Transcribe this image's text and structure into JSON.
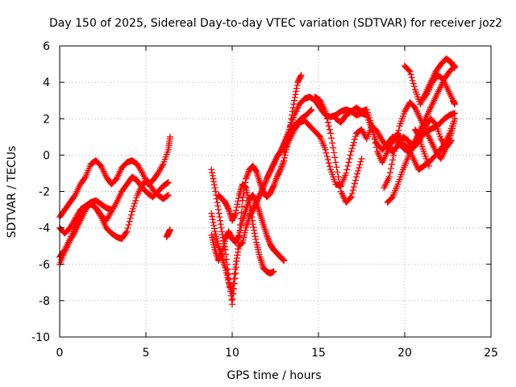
{
  "chart_data": {
    "type": "scatter",
    "title": "Day 150 of 2025, Sidereal Day-to-day VTEC variation (SDTVAR) for receiver joz2",
    "xlabel": "GPS time / hours",
    "ylabel": "SDTVAR / TECUs",
    "xlim": [
      0,
      25
    ],
    "ylim": [
      -10,
      6
    ],
    "xticks": [
      0,
      5,
      10,
      15,
      20,
      25
    ],
    "yticks": [
      -10,
      -8,
      -6,
      -4,
      -2,
      0,
      2,
      4,
      6
    ],
    "grid": true,
    "marker": "+",
    "color": "#ff0000",
    "series": [
      {
        "x": [
          0.0,
          0.3,
          0.6,
          0.9,
          1.2,
          1.5,
          1.8,
          2.1,
          2.4,
          2.7,
          3.0,
          3.3,
          3.6,
          3.9,
          4.2,
          4.5,
          4.8,
          5.1,
          5.4,
          5.7,
          6.0,
          6.3,
          6.4
        ],
        "y": [
          -3.4,
          -3.0,
          -2.6,
          -2.2,
          -1.6,
          -1.2,
          -0.5,
          -0.3,
          -0.6,
          -1.2,
          -1.6,
          -1.3,
          -0.7,
          -0.4,
          -0.3,
          -0.5,
          -1.0,
          -1.6,
          -1.4,
          -1.0,
          -0.5,
          0.3,
          1.0
        ]
      },
      {
        "x": [
          0.0,
          0.3,
          0.6,
          0.9,
          1.2,
          1.5,
          1.8,
          2.1,
          2.4,
          2.7,
          3.0,
          3.3,
          3.6,
          3.9,
          4.2,
          4.5,
          4.8,
          5.1,
          5.4,
          5.7,
          6.0,
          6.3
        ],
        "y": [
          -5.6,
          -5.2,
          -4.6,
          -3.8,
          -3.2,
          -2.9,
          -2.7,
          -2.9,
          -3.3,
          -3.6,
          -3.1,
          -2.6,
          -2.0,
          -1.6,
          -1.2,
          -1.4,
          -1.8,
          -2.1,
          -2.3,
          -2.0,
          -1.7,
          -1.5
        ]
      },
      {
        "x": [
          0.0,
          0.3,
          0.6,
          0.9,
          1.2,
          1.5,
          1.8,
          2.1,
          2.4,
          2.7,
          3.0,
          3.3,
          3.6,
          3.9,
          4.2,
          4.5,
          4.8,
          5.1,
          5.4,
          5.7,
          6.0,
          6.3
        ],
        "y": [
          -6.0,
          -5.3,
          -4.7,
          -4.2,
          -3.6,
          -3.0,
          -2.6,
          -2.9,
          -3.4,
          -4.0,
          -4.3,
          -4.5,
          -4.6,
          -4.2,
          -3.1,
          -2.2,
          -1.6,
          -1.4,
          -1.9,
          -2.2,
          -2.4,
          -2.2
        ]
      },
      {
        "x": [
          0.0,
          0.3,
          0.6,
          0.9,
          1.2,
          1.5,
          1.8,
          2.1,
          2.4,
          2.7,
          3.0
        ],
        "y": [
          -4.0,
          -4.3,
          -4.0,
          -3.5,
          -3.0,
          -2.8,
          -2.6,
          -2.5,
          -2.7,
          -2.9,
          -3.0
        ]
      },
      {
        "x": [
          6.2,
          6.3,
          6.4
        ],
        "y": [
          -4.5,
          -4.3,
          -4.1
        ]
      },
      {
        "x": [
          8.8,
          9.0,
          9.2,
          9.4,
          9.6,
          9.8,
          10.0,
          10.2,
          10.4,
          10.6,
          10.8,
          11.0,
          11.2,
          11.4,
          11.6,
          11.8,
          12.0,
          12.2,
          12.4,
          12.6,
          12.8,
          13.0,
          13.2,
          13.4,
          13.6,
          13.8,
          14.0
        ],
        "y": [
          -0.8,
          -1.8,
          -3.0,
          -4.2,
          -5.2,
          -6.8,
          -8.2,
          -6.5,
          -4.5,
          -2.5,
          -1.3,
          -0.8,
          -0.6,
          -0.9,
          -1.5,
          -2.0,
          -2.3,
          -2.1,
          -1.7,
          -1.2,
          -0.8,
          -0.3,
          0.6,
          1.8,
          3.0,
          4.0,
          4.4
        ]
      },
      {
        "x": [
          8.8,
          9.0,
          9.2,
          9.4,
          9.6,
          9.8,
          10.0,
          10.2,
          10.4,
          10.6,
          10.8,
          11.0,
          11.2,
          11.4,
          11.6,
          11.8,
          12.0,
          12.2,
          12.4,
          12.6,
          12.8,
          13.0,
          13.2,
          13.4,
          13.6,
          13.8,
          14.0,
          14.3,
          14.6
        ],
        "y": [
          -3.2,
          -4.2,
          -5.0,
          -5.6,
          -6.2,
          -7.0,
          -7.6,
          -6.0,
          -5.0,
          -4.8,
          -4.0,
          -3.4,
          -3.0,
          -2.6,
          -2.2,
          -1.8,
          -1.3,
          -0.9,
          -0.5,
          -0.1,
          0.2,
          0.6,
          1.0,
          1.3,
          1.6,
          1.8,
          2.0,
          2.2,
          2.5
        ]
      },
      {
        "x": [
          8.8,
          9.0,
          9.2,
          9.4,
          9.6,
          9.8,
          10.0,
          10.2,
          10.4,
          10.6,
          10.8,
          11.0,
          11.2,
          11.4,
          11.6,
          11.8,
          12.0,
          12.2,
          12.4,
          12.6,
          12.8,
          13.0
        ],
        "y": [
          -4.4,
          -5.2,
          -5.8,
          -5.4,
          -4.6,
          -4.2,
          -4.6,
          -4.8,
          -4.4,
          -3.6,
          -3.0,
          -2.4,
          -2.2,
          -2.6,
          -3.2,
          -3.8,
          -4.4,
          -4.9,
          -5.2,
          -5.4,
          -5.6,
          -5.8
        ]
      },
      {
        "x": [
          9.2,
          9.4,
          9.6,
          9.8,
          10.0,
          10.2,
          10.4,
          10.6,
          10.8,
          11.0,
          11.2,
          11.4,
          11.6,
          11.8,
          12.0,
          12.2,
          12.4
        ],
        "y": [
          -2.2,
          -2.4,
          -2.6,
          -3.0,
          -3.6,
          -3.2,
          -2.2,
          -1.6,
          -1.8,
          -2.6,
          -3.8,
          -4.8,
          -5.6,
          -6.2,
          -6.4,
          -6.5,
          -6.4
        ]
      },
      {
        "x": [
          13.0,
          13.3,
          13.6,
          13.9,
          14.2,
          14.5,
          14.8,
          15.1,
          15.4,
          15.7,
          16.0,
          16.3,
          16.6,
          16.9,
          17.2,
          17.5,
          17.8,
          18.1,
          18.4,
          18.7,
          19.0,
          19.3,
          19.6,
          19.9,
          20.2,
          20.5,
          20.8,
          21.1,
          21.4,
          21.7,
          22.0,
          22.3,
          22.6,
          22.9
        ],
        "y": [
          0.6,
          1.4,
          2.2,
          2.8,
          3.1,
          3.2,
          3.0,
          2.6,
          2.2,
          2.1,
          2.2,
          2.4,
          2.5,
          2.4,
          2.2,
          2.3,
          2.2,
          1.4,
          0.6,
          0.3,
          0.6,
          1.0,
          0.8,
          0.4,
          0.2,
          0.6,
          1.2,
          1.8,
          2.4,
          3.0,
          3.6,
          4.2,
          4.6,
          4.9
        ]
      },
      {
        "x": [
          13.0,
          13.3,
          13.6,
          13.9,
          14.2,
          14.5,
          14.8,
          15.1,
          15.4,
          15.7,
          16.0,
          16.3,
          16.6,
          16.9,
          17.2,
          17.5,
          17.8,
          18.1,
          18.4,
          18.7,
          19.0,
          19.3,
          19.6,
          19.9,
          20.2,
          20.5,
          20.8,
          21.1,
          21.4,
          21.7,
          22.0,
          22.3,
          22.6,
          22.9
        ],
        "y": [
          0.2,
          0.8,
          1.4,
          1.8,
          1.9,
          1.6,
          1.3,
          1.0,
          0.3,
          -0.8,
          -1.6,
          -1.7,
          -1.0,
          0.2,
          1.2,
          1.4,
          0.9,
          1.6,
          1.3,
          0.8,
          0.4,
          0.2,
          0.5,
          1.0,
          0.8,
          0.4,
          0.7,
          1.2,
          1.4,
          1.5,
          1.7,
          2.0,
          2.2,
          2.3
        ]
      },
      {
        "x": [
          14.8,
          15.1,
          15.4,
          15.7,
          16.0,
          16.3,
          16.6,
          16.9,
          17.2,
          17.5
        ],
        "y": [
          3.2,
          3.0,
          2.4,
          1.2,
          -0.4,
          -2.0,
          -2.6,
          -2.3,
          -1.2,
          -0.2
        ]
      },
      {
        "x": [
          16.0,
          16.3,
          16.6,
          16.9,
          17.2,
          17.5,
          17.8,
          18.1,
          18.4,
          18.7,
          19.0,
          19.3,
          19.6,
          19.9,
          20.2,
          20.5,
          20.8,
          21.1,
          21.4,
          21.7,
          22.0,
          22.3,
          22.6,
          22.9
        ],
        "y": [
          2.0,
          1.8,
          2.2,
          2.4,
          2.6,
          2.4,
          2.5,
          1.6,
          0.2,
          -0.4,
          0.2,
          0.8,
          1.2,
          0.6,
          0.4,
          -0.2,
          -0.8,
          -0.6,
          -0.4,
          -0.1,
          0.2,
          0.6,
          1.2,
          2.0
        ]
      },
      {
        "x": [
          18.8,
          19.1,
          19.4,
          19.7,
          20.0,
          20.3,
          20.6,
          20.9,
          21.2,
          21.5,
          21.8,
          22.1,
          22.4,
          22.7,
          22.9
        ],
        "y": [
          -1.8,
          -1.2,
          0.2,
          1.6,
          2.4,
          2.9,
          2.6,
          2.0,
          1.4,
          0.8,
          0.2,
          -0.2,
          0.4,
          1.2,
          2.0
        ]
      },
      {
        "x": [
          19.0,
          19.3,
          19.6,
          19.9,
          20.2,
          20.5,
          20.8,
          21.1,
          21.4
        ],
        "y": [
          -2.6,
          -2.3,
          -1.6,
          -0.8,
          -0.1,
          0.6,
          1.0,
          0.2,
          -0.6
        ]
      },
      {
        "x": [
          20.0,
          20.3,
          20.6,
          20.9,
          21.2,
          21.5,
          21.8,
          22.1,
          22.4,
          22.7,
          22.9
        ],
        "y": [
          4.9,
          4.6,
          3.6,
          2.8,
          3.4,
          4.0,
          4.6,
          5.0,
          5.3,
          5.1,
          4.8
        ]
      },
      {
        "x": [
          21.0,
          21.3,
          21.6,
          21.9,
          22.2,
          22.5,
          22.8,
          22.9
        ],
        "y": [
          3.0,
          3.4,
          4.0,
          4.4,
          4.2,
          3.6,
          3.0,
          2.8
        ]
      },
      {
        "x": [
          20.6,
          20.9,
          21.2,
          21.5,
          21.8,
          22.1,
          22.4,
          22.7
        ],
        "y": [
          1.4,
          1.0,
          1.6,
          2.0,
          1.7,
          0.9,
          0.4,
          0.8
        ]
      }
    ]
  }
}
